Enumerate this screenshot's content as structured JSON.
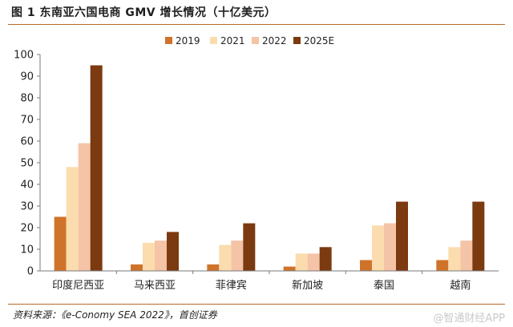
{
  "title": "图 1 东南亚六国电商 GMV 增长情况（十亿美元）",
  "source": "资料来源：《e-Conomy SEA 2022》，首创证券",
  "watermark": "@智通财经APP",
  "colors": {
    "accent_rule": "#b86a2a",
    "series": [
      "#d0732a",
      "#fbdcae",
      "#f5c3a6",
      "#7b3a10"
    ]
  },
  "chart_data": {
    "type": "bar",
    "categories": [
      "印度尼西亚",
      "马来西亚",
      "菲律宾",
      "新加坡",
      "泰国",
      "越南"
    ],
    "series": [
      {
        "name": "2019",
        "values": [
          25,
          3,
          3,
          2,
          5,
          5
        ]
      },
      {
        "name": "2021",
        "values": [
          48,
          13,
          12,
          8,
          21,
          11
        ]
      },
      {
        "name": "2022",
        "values": [
          59,
          14,
          14,
          8,
          22,
          14
        ]
      },
      {
        "name": "2025E",
        "values": [
          95,
          18,
          22,
          11,
          32,
          32
        ]
      }
    ],
    "ylim": [
      0,
      100
    ],
    "yticks": [
      0,
      10,
      20,
      30,
      40,
      50,
      60,
      70,
      80,
      90,
      100
    ],
    "legend": "top",
    "grid": false
  }
}
